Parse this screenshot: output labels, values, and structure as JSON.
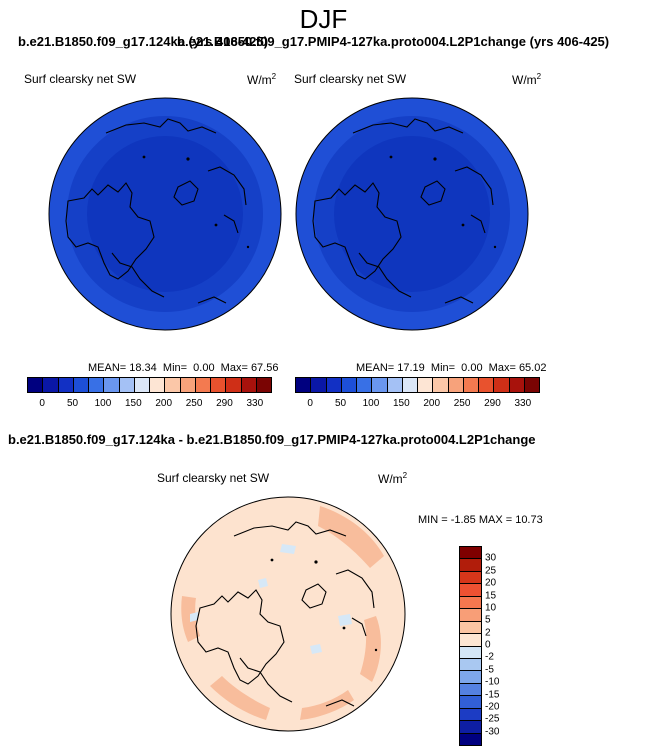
{
  "season": "DJF",
  "panels": {
    "left": {
      "case": "b.e21.B1850.f09_g17.124ka (yrs 406-425)",
      "variable": "Surf clearsky net SW",
      "units_base": "W/m",
      "units_exp": "2",
      "stats": "MEAN= 18.34  Min=  0.00  Max= 67.56"
    },
    "right": {
      "case": "b.e21.B1850.f09_g17.PMIP4-127ka.proto004.L2P1change (yrs 406-425)",
      "variable": "Surf clearsky net SW",
      "units_base": "W/m",
      "units_exp": "2",
      "stats": "MEAN= 17.19  Min=  0.00  Max= 65.02"
    },
    "diff": {
      "title": "b.e21.B1850.f09_g17.124ka - b.e21.B1850.f09_g17.PMIP4-127ka.proto004.L2P1change",
      "variable": "Surf clearsky net SW",
      "units_base": "W/m",
      "units_exp": "2",
      "stats": "MIN = -1.85 MAX = 10.73"
    }
  },
  "abs_colorbar": {
    "colors": [
      "#00007f",
      "#0a17a6",
      "#1230c4",
      "#1d4fd8",
      "#3870e6",
      "#6a96ef",
      "#a4c1f5",
      "#dbe6f7",
      "#fde5d4",
      "#fbc7a8",
      "#f7a27b",
      "#f37a50",
      "#e8522e",
      "#cf2f17",
      "#a8120c",
      "#7a0403"
    ],
    "labels": [
      "0",
      "50",
      "100",
      "150",
      "200",
      "250",
      "290",
      "330"
    ]
  },
  "diff_colorbar": {
    "colors": [
      "#7f0000",
      "#b11d0b",
      "#d6361a",
      "#ee5132",
      "#f5774f",
      "#f89e77",
      "#fbc5a3",
      "#fde6d3",
      "#d4e6f6",
      "#a9c8f1",
      "#7ea6ea",
      "#5581e1",
      "#325fd6",
      "#1c3cc4",
      "#0e1ea3",
      "#000080"
    ],
    "labels": [
      "30",
      "25",
      "20",
      "15",
      "10",
      "5",
      "2",
      "0",
      "-2",
      "-5",
      "-10",
      "-15",
      "-20",
      "-25",
      "-30"
    ]
  }
}
